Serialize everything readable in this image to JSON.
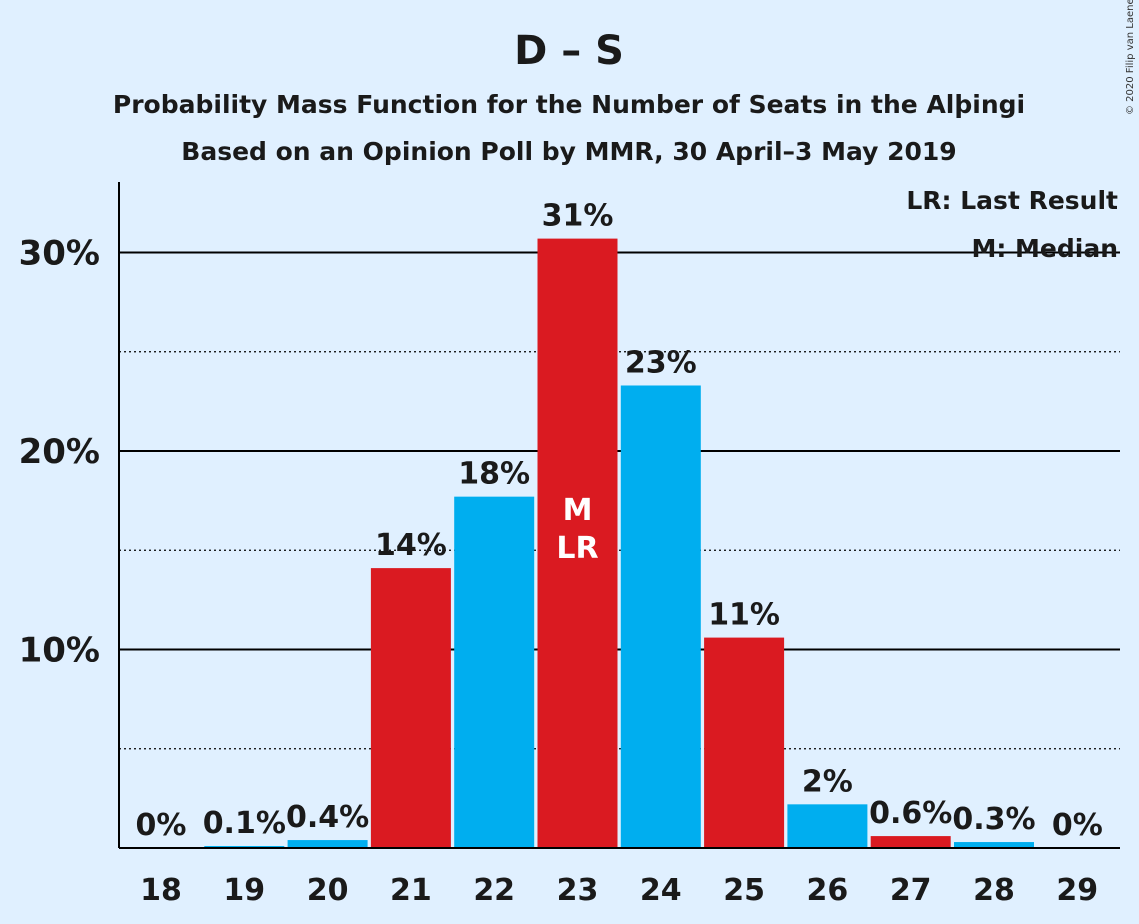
{
  "chart_data": {
    "type": "bar",
    "title": "D – S",
    "subtitle_line1": "Probability Mass Function for the Number of Seats in the Alþingi",
    "subtitle_line2": "Based on an Opinion Poll by MMR, 30 April–3 May 2019",
    "copyright": "© 2020 Filip van Laenen",
    "legend": {
      "last_result": "LR: Last Result",
      "median": "M: Median",
      "placement": "top-right"
    },
    "categories": [
      "18",
      "19",
      "20",
      "21",
      "22",
      "23",
      "24",
      "25",
      "26",
      "27",
      "28",
      "29"
    ],
    "values": [
      0,
      0.1,
      0.4,
      14.1,
      17.7,
      30.7,
      23.3,
      10.6,
      2.2,
      0.6,
      0.3,
      0
    ],
    "labels": [
      "0%",
      "0.1%",
      "0.4%",
      "14%",
      "18%",
      "31%",
      "23%",
      "11%",
      "2%",
      "0.6%",
      "0.3%",
      "0%"
    ],
    "bar_colors": [
      "#da1a21",
      "#00aeef",
      "#00aeef",
      "#da1a21",
      "#00aeef",
      "#da1a21",
      "#00aeef",
      "#da1a21",
      "#00aeef",
      "#da1a21",
      "#00aeef",
      "#da1a21"
    ],
    "median_marker": {
      "category": "23",
      "median_text": "M",
      "last_result_text": "LR"
    },
    "yticks": [
      {
        "value": 10,
        "label": "10%"
      },
      {
        "value": 20,
        "label": "20%"
      },
      {
        "value": 30,
        "label": "30%"
      }
    ],
    "minor_gridlines": [
      5,
      15,
      25
    ],
    "ylim": [
      0,
      33.5
    ],
    "grid": true,
    "colors": {
      "red": "#da1a21",
      "blue": "#00aeef",
      "background": "#e0f0ff",
      "text": "#1a1a1a"
    }
  }
}
